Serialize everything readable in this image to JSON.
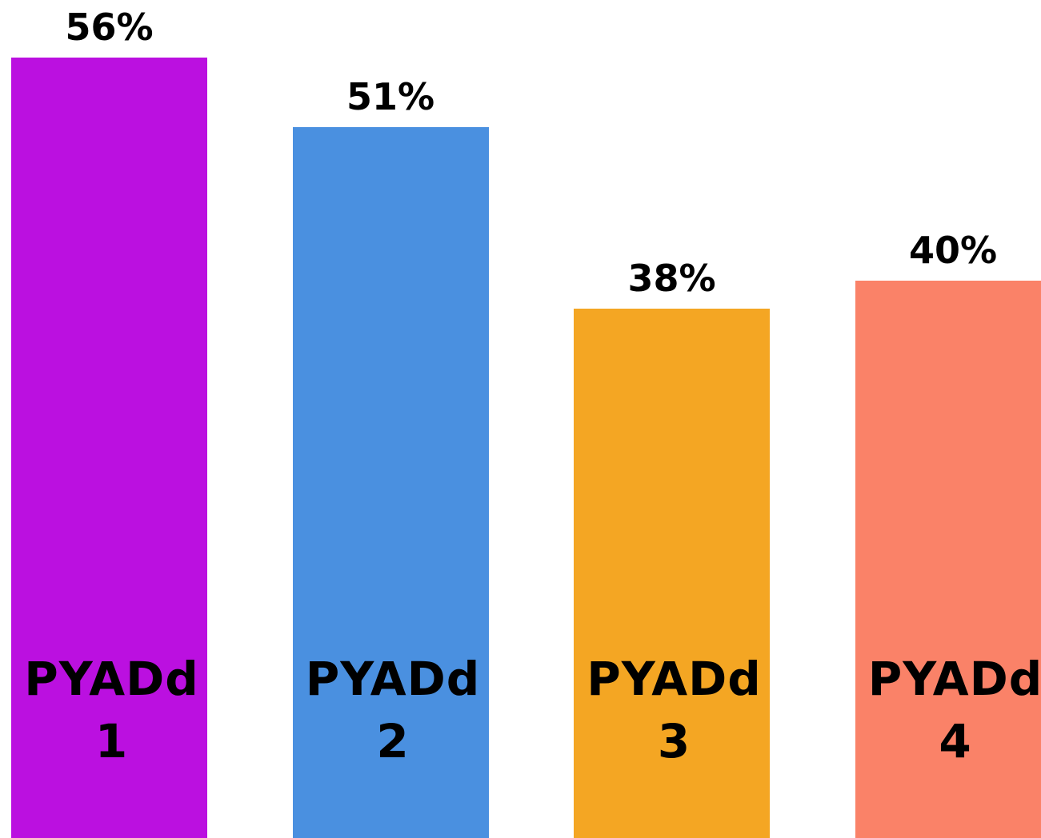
{
  "chart_data": {
    "type": "bar",
    "categories": [
      "PYADd 1",
      "PYADd 2",
      "PYADd 3",
      "PYADd 4"
    ],
    "values": [
      56,
      51,
      38,
      40
    ],
    "value_labels": [
      "56%",
      "51%",
      "38%",
      "40%"
    ],
    "colors": [
      "#bb10e0",
      "#4a90e0",
      "#f4a623",
      "#fa8268"
    ],
    "ylim": [
      0,
      60
    ]
  }
}
